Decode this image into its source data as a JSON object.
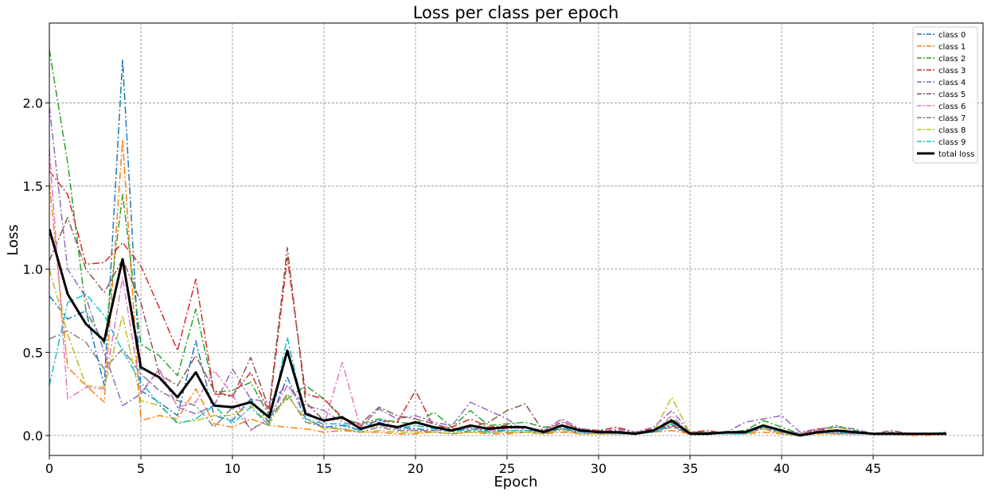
{
  "chart_data": {
    "type": "line",
    "title": "Loss per class per epoch",
    "xlabel": "Epoch",
    "ylabel": "Loss",
    "xlim": [
      0,
      51
    ],
    "ylim": [
      -0.12,
      2.48
    ],
    "xticks": [
      0,
      5,
      10,
      15,
      20,
      25,
      30,
      35,
      40,
      45
    ],
    "yticks": [
      0.0,
      0.5,
      1.0,
      1.5,
      2.0
    ],
    "xtick_labels": [
      "0",
      "5",
      "10",
      "15",
      "20",
      "25",
      "30",
      "35",
      "40",
      "45"
    ],
    "ytick_labels": [
      "0.0",
      "0.5",
      "1.0",
      "1.5",
      "2.0"
    ],
    "grid": true,
    "legend_position": "top-right",
    "x": [
      0,
      1,
      2,
      3,
      4,
      5,
      6,
      7,
      8,
      9,
      10,
      11,
      12,
      13,
      14,
      15,
      16,
      17,
      18,
      19,
      20,
      21,
      22,
      23,
      24,
      25,
      26,
      27,
      28,
      29,
      30,
      31,
      32,
      33,
      34,
      35,
      36,
      37,
      38,
      39,
      40,
      41,
      42,
      43,
      44,
      45,
      46,
      47,
      48,
      49
    ],
    "series": [
      {
        "name": "class 0",
        "color": "#1f77b4",
        "style": "dashdot",
        "values": [
          0.84,
          0.7,
          0.75,
          0.3,
          2.26,
          0.27,
          0.2,
          0.12,
          0.57,
          0.12,
          0.09,
          0.22,
          0.08,
          0.35,
          0.1,
          0.05,
          0.06,
          0.03,
          0.08,
          0.05,
          0.04,
          0.03,
          0.03,
          0.04,
          0.03,
          0.03,
          0.03,
          0.02,
          0.04,
          0.02,
          0.02,
          0.01,
          0.01,
          0.02,
          0.06,
          0.01,
          0.01,
          0.02,
          0.01,
          0.05,
          0.03,
          0.01,
          0.02,
          0.02,
          0.01,
          0.01,
          0.01,
          0.01,
          0.01,
          0.01
        ]
      },
      {
        "name": "class 1",
        "color": "#ff7f0e",
        "style": "dashdot",
        "values": [
          1.52,
          0.41,
          0.3,
          0.2,
          1.78,
          0.09,
          0.12,
          0.1,
          0.28,
          0.07,
          0.05,
          0.1,
          0.06,
          0.05,
          0.04,
          0.02,
          0.03,
          0.02,
          0.02,
          0.01,
          0.01,
          0.02,
          0.01,
          0.02,
          0.01,
          0.01,
          0.02,
          0.01,
          0.02,
          0.01,
          0.01,
          0.01,
          0.01,
          0.02,
          0.03,
          0.01,
          0.01,
          0.01,
          0.01,
          0.02,
          0.01,
          0.0,
          0.01,
          0.01,
          0.01,
          0.01,
          0.01,
          0.0,
          0.0,
          0.01
        ]
      },
      {
        "name": "class 2",
        "color": "#2ca02c",
        "style": "dashdot",
        "values": [
          2.32,
          1.64,
          0.75,
          0.55,
          1.45,
          0.55,
          0.48,
          0.36,
          0.76,
          0.26,
          0.27,
          0.32,
          0.12,
          0.22,
          0.3,
          0.22,
          0.1,
          0.07,
          0.1,
          0.08,
          0.07,
          0.14,
          0.05,
          0.15,
          0.06,
          0.07,
          0.08,
          0.05,
          0.06,
          0.04,
          0.03,
          0.02,
          0.02,
          0.03,
          0.1,
          0.02,
          0.02,
          0.02,
          0.03,
          0.09,
          0.05,
          0.01,
          0.03,
          0.06,
          0.03,
          0.01,
          0.01,
          0.01,
          0.01,
          0.02
        ]
      },
      {
        "name": "class 3",
        "color": "#d62728",
        "style": "dashdot",
        "values": [
          1.59,
          1.45,
          1.03,
          1.04,
          1.16,
          1.02,
          0.77,
          0.51,
          0.94,
          0.25,
          0.24,
          0.38,
          0.14,
          1.07,
          0.25,
          0.22,
          0.11,
          0.06,
          0.09,
          0.08,
          0.27,
          0.05,
          0.05,
          0.1,
          0.05,
          0.06,
          0.05,
          0.03,
          0.08,
          0.04,
          0.03,
          0.05,
          0.02,
          0.04,
          0.06,
          0.02,
          0.03,
          0.01,
          0.02,
          0.04,
          0.02,
          0.01,
          0.04,
          0.02,
          0.02,
          0.01,
          0.01,
          0.01,
          0.01,
          0.01
        ]
      },
      {
        "name": "class 4",
        "color": "#9467bd",
        "style": "dashdot",
        "values": [
          1.98,
          1.0,
          0.83,
          0.5,
          0.18,
          0.25,
          0.4,
          0.17,
          0.13,
          0.18,
          0.4,
          0.22,
          0.2,
          0.3,
          0.18,
          0.15,
          0.08,
          0.05,
          0.16,
          0.1,
          0.12,
          0.08,
          0.06,
          0.2,
          0.15,
          0.1,
          0.03,
          0.03,
          0.1,
          0.04,
          0.02,
          0.04,
          0.02,
          0.05,
          0.15,
          0.02,
          0.02,
          0.02,
          0.08,
          0.1,
          0.12,
          0.02,
          0.04,
          0.05,
          0.04,
          0.01,
          0.02,
          0.01,
          0.01,
          0.01
        ]
      },
      {
        "name": "class 5",
        "color": "#8c564b",
        "style": "dashdot",
        "values": [
          1.05,
          1.31,
          1.0,
          0.86,
          1.06,
          0.8,
          0.37,
          0.3,
          0.48,
          0.27,
          0.23,
          0.47,
          0.16,
          1.13,
          0.2,
          0.09,
          0.1,
          0.07,
          0.17,
          0.12,
          0.1,
          0.07,
          0.04,
          0.05,
          0.08,
          0.15,
          0.19,
          0.02,
          0.06,
          0.03,
          0.02,
          0.03,
          0.01,
          0.03,
          0.08,
          0.02,
          0.02,
          0.02,
          0.02,
          0.06,
          0.03,
          0.01,
          0.03,
          0.02,
          0.01,
          0.01,
          0.03,
          0.01,
          0.01,
          0.01
        ]
      },
      {
        "name": "class 6",
        "color": "#e377c2",
        "style": "dashdot",
        "values": [
          1.72,
          0.22,
          0.29,
          0.28,
          0.95,
          0.26,
          0.4,
          0.17,
          0.2,
          0.39,
          0.25,
          0.03,
          0.1,
          0.3,
          0.15,
          0.06,
          0.44,
          0.04,
          0.06,
          0.04,
          0.03,
          0.03,
          0.03,
          0.05,
          0.03,
          0.04,
          0.05,
          0.02,
          0.09,
          0.03,
          0.02,
          0.01,
          0.01,
          0.02,
          0.12,
          0.01,
          0.01,
          0.01,
          0.01,
          0.04,
          0.01,
          0.01,
          0.03,
          0.02,
          0.01,
          0.01,
          0.01,
          0.01,
          0.01,
          0.01
        ]
      },
      {
        "name": "class 7",
        "color": "#7f7f7f",
        "style": "dashdot",
        "values": [
          0.58,
          0.63,
          0.56,
          0.4,
          0.52,
          0.37,
          0.27,
          0.21,
          0.18,
          0.05,
          0.17,
          0.04,
          0.09,
          0.25,
          0.08,
          0.05,
          0.04,
          0.02,
          0.05,
          0.03,
          0.03,
          0.02,
          0.01,
          0.03,
          0.02,
          0.02,
          0.02,
          0.01,
          0.04,
          0.01,
          0.01,
          0.01,
          0.01,
          0.02,
          0.05,
          0.01,
          0.01,
          0.01,
          0.01,
          0.06,
          0.02,
          0.01,
          0.02,
          0.01,
          0.01,
          0.01,
          0.01,
          0.01,
          0.01,
          0.01
        ]
      },
      {
        "name": "class 8",
        "color": "#bcbd22",
        "style": "dashdot",
        "values": [
          1.0,
          0.61,
          0.3,
          0.29,
          0.72,
          0.21,
          0.18,
          0.08,
          0.09,
          0.12,
          0.12,
          0.18,
          0.07,
          0.24,
          0.1,
          0.04,
          0.04,
          0.02,
          0.03,
          0.02,
          0.02,
          0.02,
          0.01,
          0.02,
          0.02,
          0.02,
          0.02,
          0.01,
          0.03,
          0.01,
          0.01,
          0.01,
          0.01,
          0.02,
          0.23,
          0.01,
          0.01,
          0.01,
          0.01,
          0.04,
          0.01,
          0.0,
          0.02,
          0.05,
          0.02,
          0.01,
          0.01,
          0.01,
          0.01,
          0.01
        ]
      },
      {
        "name": "class 9",
        "color": "#17becf",
        "style": "dashdot",
        "values": [
          0.3,
          0.8,
          0.85,
          0.72,
          0.51,
          0.32,
          0.19,
          0.07,
          0.1,
          0.18,
          0.07,
          0.17,
          0.06,
          0.59,
          0.1,
          0.07,
          0.07,
          0.03,
          0.1,
          0.04,
          0.06,
          0.04,
          0.02,
          0.04,
          0.02,
          0.03,
          0.03,
          0.02,
          0.05,
          0.02,
          0.02,
          0.01,
          0.01,
          0.02,
          0.07,
          0.01,
          0.01,
          0.01,
          0.01,
          0.05,
          0.02,
          0.0,
          0.02,
          0.02,
          0.01,
          0.01,
          0.01,
          0.01,
          0.01,
          0.02
        ]
      },
      {
        "name": "total loss",
        "color": "#000000",
        "style": "solid",
        "values": [
          1.24,
          0.85,
          0.67,
          0.57,
          1.06,
          0.41,
          0.35,
          0.23,
          0.38,
          0.18,
          0.17,
          0.2,
          0.11,
          0.51,
          0.13,
          0.09,
          0.11,
          0.04,
          0.07,
          0.05,
          0.08,
          0.05,
          0.03,
          0.06,
          0.04,
          0.05,
          0.05,
          0.02,
          0.06,
          0.03,
          0.02,
          0.02,
          0.01,
          0.03,
          0.09,
          0.01,
          0.01,
          0.02,
          0.02,
          0.06,
          0.03,
          0.0,
          0.02,
          0.03,
          0.02,
          0.01,
          0.01,
          0.01,
          0.01,
          0.01
        ]
      }
    ]
  }
}
